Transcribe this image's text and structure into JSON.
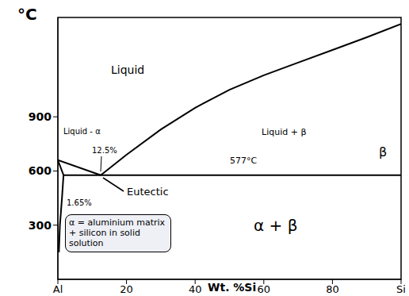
{
  "chart_data": {
    "type": "line",
    "y_label": "°C",
    "x_label": "Wt. %Si",
    "color": "#000000",
    "xlim": [
      0,
      100
    ],
    "xticks": [
      {
        "value": 0,
        "label": "Al"
      },
      20,
      40,
      60,
      80,
      {
        "value": 100,
        "label": "Si"
      }
    ],
    "ylim": [
      0,
      1450
    ],
    "yticks": [
      300,
      600,
      900
    ],
    "grid": false,
    "series": [
      {
        "x": [
          0,
          12.5
        ],
        "values": [
          660,
          577
        ]
      },
      {
        "x": [
          12.5,
          20,
          30,
          40,
          50,
          60,
          70,
          80,
          90,
          100
        ],
        "values": [
          577,
          690,
          830,
          950,
          1050,
          1130,
          1200,
          1270,
          1340,
          1414
        ]
      },
      {
        "x": [
          1.65,
          100
        ],
        "values": [
          577,
          577
        ]
      },
      {
        "x": [
          0,
          1.65
        ],
        "values": [
          660,
          577
        ]
      },
      {
        "x": [
          1.65,
          1.2,
          0.6,
          0.3
        ],
        "values": [
          577,
          450,
          300,
          150
        ]
      }
    ],
    "annotations": [
      "Liquid",
      "Liquid - α",
      "12.5%",
      "577°C",
      "Liquid + β",
      "β",
      "Eutectic",
      "1.65%",
      "α = aluminium matrix + silicon in solid solution",
      "α + β"
    ]
  }
}
